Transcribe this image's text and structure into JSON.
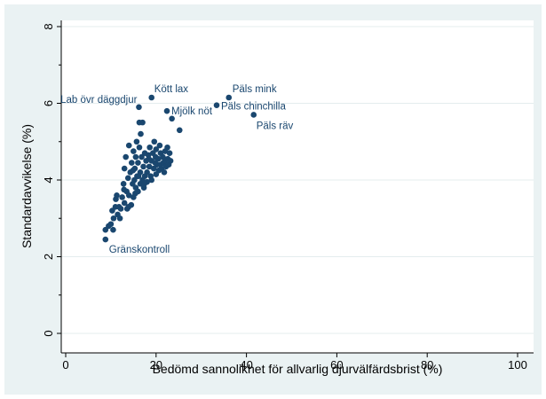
{
  "chart_data": {
    "type": "scatter",
    "title": "",
    "xlabel": "Bedömd sannolikhet för allvarlig djurvälfärdsbrist (%)",
    "ylabel": "Standardavvikelse (%)",
    "xlim": [
      0,
      100
    ],
    "ylim": [
      0,
      8
    ],
    "xticks": [
      "0",
      "20",
      "40",
      "60",
      "80",
      "100"
    ],
    "yticks": [
      "0",
      "2",
      "4",
      "6",
      "8"
    ],
    "grid": "horizontal",
    "marker_color": "#1a476f",
    "annotations": [
      {
        "label": "Lab övr däggdjur",
        "x": 16.2,
        "y": 5.9
      },
      {
        "label": "Kött lax",
        "x": 19.0,
        "y": 6.15
      },
      {
        "label": "Mjölk nöt",
        "x": 22.4,
        "y": 5.8
      },
      {
        "label": "Päls mink",
        "x": 36.1,
        "y": 6.15
      },
      {
        "label": "Päls chinchilla",
        "x": 33.4,
        "y": 5.95
      },
      {
        "label": "Päls räv",
        "x": 41.6,
        "y": 5.7
      },
      {
        "label": "Gränskontroll",
        "x": 8.8,
        "y": 2.45
      }
    ],
    "points": [
      [
        8.8,
        2.45
      ],
      [
        8.8,
        2.7
      ],
      [
        9.5,
        2.8
      ],
      [
        10.0,
        2.85
      ],
      [
        10.5,
        2.7
      ],
      [
        10.6,
        3.0
      ],
      [
        11.0,
        3.3
      ],
      [
        11.1,
        3.5
      ],
      [
        11.5,
        3.1
      ],
      [
        11.8,
        3.3
      ],
      [
        12.0,
        3.0
      ],
      [
        12.2,
        3.25
      ],
      [
        12.5,
        3.55
      ],
      [
        12.8,
        3.9
      ],
      [
        13.0,
        3.4
      ],
      [
        13.0,
        4.3
      ],
      [
        13.3,
        4.6
      ],
      [
        13.5,
        3.7
      ],
      [
        13.6,
        3.25
      ],
      [
        13.8,
        4.05
      ],
      [
        14.0,
        3.6
      ],
      [
        14.0,
        4.9
      ],
      [
        14.3,
        4.2
      ],
      [
        14.5,
        3.35
      ],
      [
        14.6,
        4.45
      ],
      [
        14.8,
        3.9
      ],
      [
        15.0,
        3.55
      ],
      [
        15.0,
        4.75
      ],
      [
        15.2,
        4.0
      ],
      [
        15.3,
        4.3
      ],
      [
        15.5,
        3.8
      ],
      [
        15.5,
        4.6
      ],
      [
        15.7,
        5.0
      ],
      [
        15.8,
        4.1
      ],
      [
        16.0,
        3.7
      ],
      [
        16.0,
        4.45
      ],
      [
        16.2,
        5.9
      ],
      [
        16.3,
        5.5
      ],
      [
        16.3,
        4.85
      ],
      [
        16.5,
        4.2
      ],
      [
        16.5,
        3.9
      ],
      [
        16.6,
        5.2
      ],
      [
        16.8,
        4.6
      ],
      [
        17.0,
        4.0
      ],
      [
        17.0,
        5.5
      ],
      [
        17.2,
        4.35
      ],
      [
        17.3,
        3.8
      ],
      [
        17.5,
        4.7
      ],
      [
        17.5,
        4.1
      ],
      [
        17.8,
        4.5
      ],
      [
        18.0,
        4.2
      ],
      [
        18.0,
        3.95
      ],
      [
        18.3,
        4.65
      ],
      [
        18.5,
        4.35
      ],
      [
        18.6,
        4.85
      ],
      [
        18.8,
        4.1
      ],
      [
        19.0,
        6.15
      ],
      [
        19.0,
        4.5
      ],
      [
        19.0,
        4.0
      ],
      [
        19.3,
        4.7
      ],
      [
        19.5,
        4.3
      ],
      [
        19.6,
        5.0
      ],
      [
        19.8,
        4.45
      ],
      [
        20.0,
        4.15
      ],
      [
        20.0,
        4.8
      ],
      [
        20.2,
        4.4
      ],
      [
        20.5,
        4.55
      ],
      [
        20.6,
        4.25
      ],
      [
        20.8,
        4.9
      ],
      [
        21.0,
        4.4
      ],
      [
        21.0,
        4.7
      ],
      [
        21.2,
        4.3
      ],
      [
        21.5,
        4.6
      ],
      [
        21.6,
        4.45
      ],
      [
        21.8,
        4.2
      ],
      [
        22.0,
        4.75
      ],
      [
        22.0,
        4.5
      ],
      [
        22.2,
        4.35
      ],
      [
        22.4,
        5.8
      ],
      [
        22.5,
        4.85
      ],
      [
        22.6,
        4.55
      ],
      [
        22.8,
        4.4
      ],
      [
        23.0,
        4.7
      ],
      [
        23.2,
        4.5
      ],
      [
        23.5,
        5.6
      ],
      [
        25.2,
        5.3
      ],
      [
        33.4,
        5.95
      ],
      [
        36.1,
        6.15
      ],
      [
        41.6,
        5.7
      ],
      [
        10.3,
        3.2
      ],
      [
        11.3,
        3.6
      ],
      [
        12.9,
        3.75
      ],
      [
        13.9,
        3.3
      ],
      [
        14.9,
        4.25
      ],
      [
        15.4,
        3.65
      ],
      [
        16.1,
        4.1
      ],
      [
        17.4,
        3.9
      ],
      [
        18.4,
        4.55
      ],
      [
        19.9,
        4.6
      ]
    ]
  }
}
